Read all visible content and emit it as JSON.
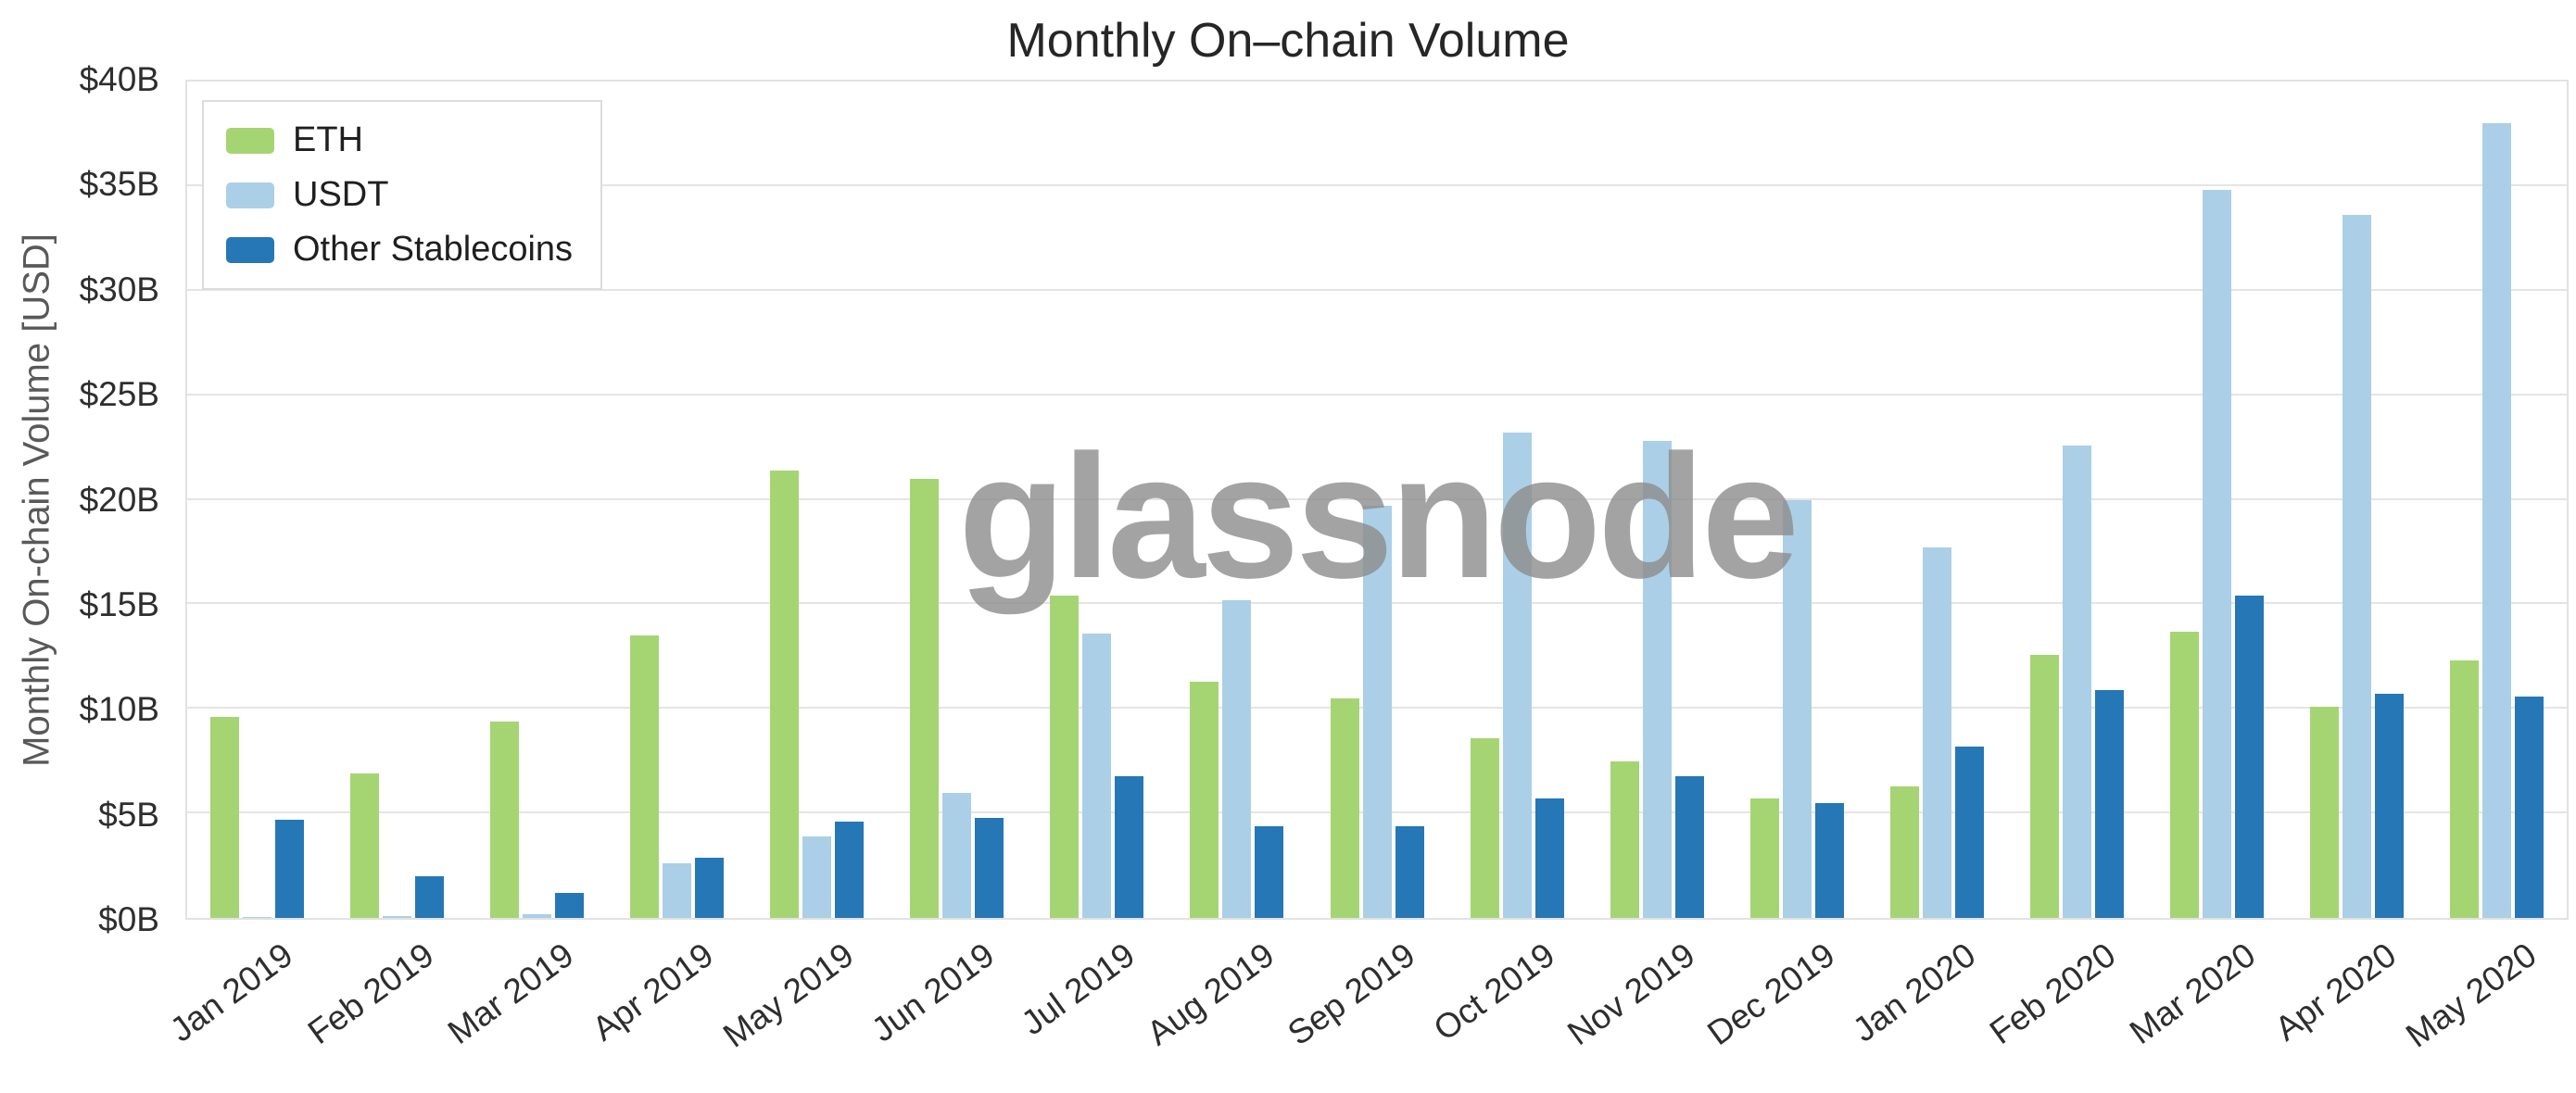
{
  "title": "Monthly On–chain Volume",
  "watermark": "glassnode",
  "colors": {
    "eth": "#a5d573",
    "usdt": "#abcfe6",
    "other_stablecoins": "#2677b5",
    "gridline": "#e4e4e4",
    "watermark_gray": "#8d8d8d"
  },
  "chart_data": {
    "type": "bar",
    "title": "Monthly On–chain Volume",
    "xlabel": "",
    "ylabel": "Monthly On-chain Volume [USD]",
    "ylim": [
      0,
      40
    ],
    "ytick_step": 5,
    "ytick_labels": [
      "$0B",
      "$5B",
      "$10B",
      "$15B",
      "$20B",
      "$25B",
      "$30B",
      "$35B",
      "$40B"
    ],
    "unit": "billions of USD",
    "grid": true,
    "legend_position": "top-left",
    "categories": [
      "Jan 2019",
      "Feb 2019",
      "Mar 2019",
      "Apr 2019",
      "May 2019",
      "Jun 2019",
      "Jul 2019",
      "Aug 2019",
      "Sep 2019",
      "Oct 2019",
      "Nov 2019",
      "Dec 2019",
      "Jan 2020",
      "Feb 2020",
      "Mar 2020",
      "Apr 2020",
      "May 2020"
    ],
    "series": [
      {
        "name": "ETH",
        "color": "#a5d573",
        "values": [
          9.6,
          6.9,
          9.4,
          13.5,
          21.4,
          21.0,
          15.4,
          11.3,
          10.5,
          8.6,
          7.5,
          5.7,
          6.3,
          12.6,
          13.7,
          10.1,
          12.3
        ]
      },
      {
        "name": "USDT",
        "color": "#abcfe6",
        "values": [
          0.05,
          0.1,
          0.2,
          2.6,
          3.9,
          6.0,
          13.6,
          15.2,
          19.7,
          23.2,
          22.8,
          20.0,
          17.7,
          22.6,
          34.8,
          33.6,
          38.0
        ]
      },
      {
        "name": "Other Stablecoins",
        "color": "#2677b5",
        "values": [
          4.7,
          2.0,
          1.2,
          2.9,
          4.6,
          4.8,
          6.8,
          4.4,
          4.4,
          5.7,
          6.8,
          5.5,
          8.2,
          10.9,
          15.4,
          10.7,
          10.6
        ]
      }
    ]
  }
}
